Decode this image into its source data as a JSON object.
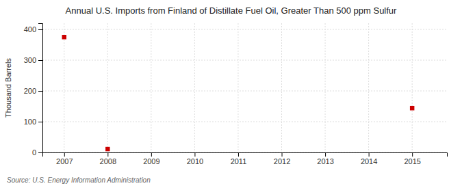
{
  "chart_data": {
    "type": "scatter",
    "title": "Annual U.S. Imports from Finland of Distillate Fuel Oil, Greater Than 500 ppm Sulfur",
    "ylabel": "Thousand Barrels",
    "source": "Source: U.S. Energy Information Administration",
    "x": [
      2007,
      2008,
      2015
    ],
    "values": [
      375,
      11,
      144
    ],
    "color": "#cc0000",
    "marker": "square",
    "xlim": [
      2006.5,
      2015.8
    ],
    "xticks": [
      2007,
      2008,
      2009,
      2010,
      2011,
      2012,
      2013,
      2014,
      2015
    ],
    "ylim": [
      0,
      420
    ],
    "yticks": [
      0,
      100,
      200,
      300,
      400
    ],
    "grid": true
  }
}
